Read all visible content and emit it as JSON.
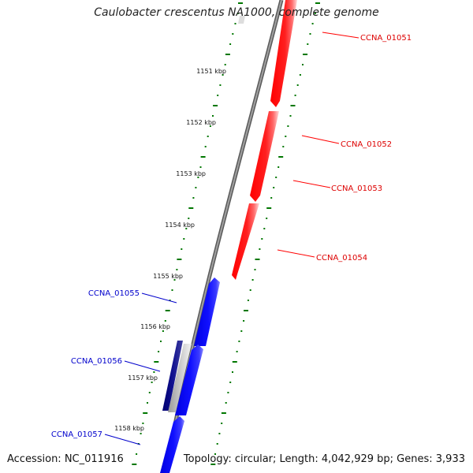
{
  "title": "Caulobacter crescentus NA1000, complete genome",
  "footer": {
    "accession": "Accession: NC_011916",
    "summary": "Topology: circular; Length: 4,042,929 bp; Genes: 3,933"
  },
  "colors": {
    "forward_gene": "#ff0000",
    "reverse_gene": "#0000ff",
    "reverse_gene_dark": "#000080",
    "backbone": "#808080",
    "tick": "#007700"
  },
  "scale_marks": [
    {
      "label": "1151 kbp"
    },
    {
      "label": "1152 kbp"
    },
    {
      "label": "1153 kbp"
    },
    {
      "label": "1154 kbp"
    },
    {
      "label": "1155 kbp"
    },
    {
      "label": "1156 kbp"
    },
    {
      "label": "1157 kbp"
    },
    {
      "label": "1158 kbp"
    }
  ],
  "genes": [
    {
      "name": "CCNA_01051",
      "strand": "forward"
    },
    {
      "name": "CCNA_01052",
      "strand": "forward"
    },
    {
      "name": "CCNA_01053",
      "strand": "forward"
    },
    {
      "name": "CCNA_01054",
      "strand": "forward"
    },
    {
      "name": "CCNA_01055",
      "strand": "reverse"
    },
    {
      "name": "CCNA_01056",
      "strand": "reverse"
    },
    {
      "name": "CCNA_01057",
      "strand": "reverse"
    }
  ]
}
